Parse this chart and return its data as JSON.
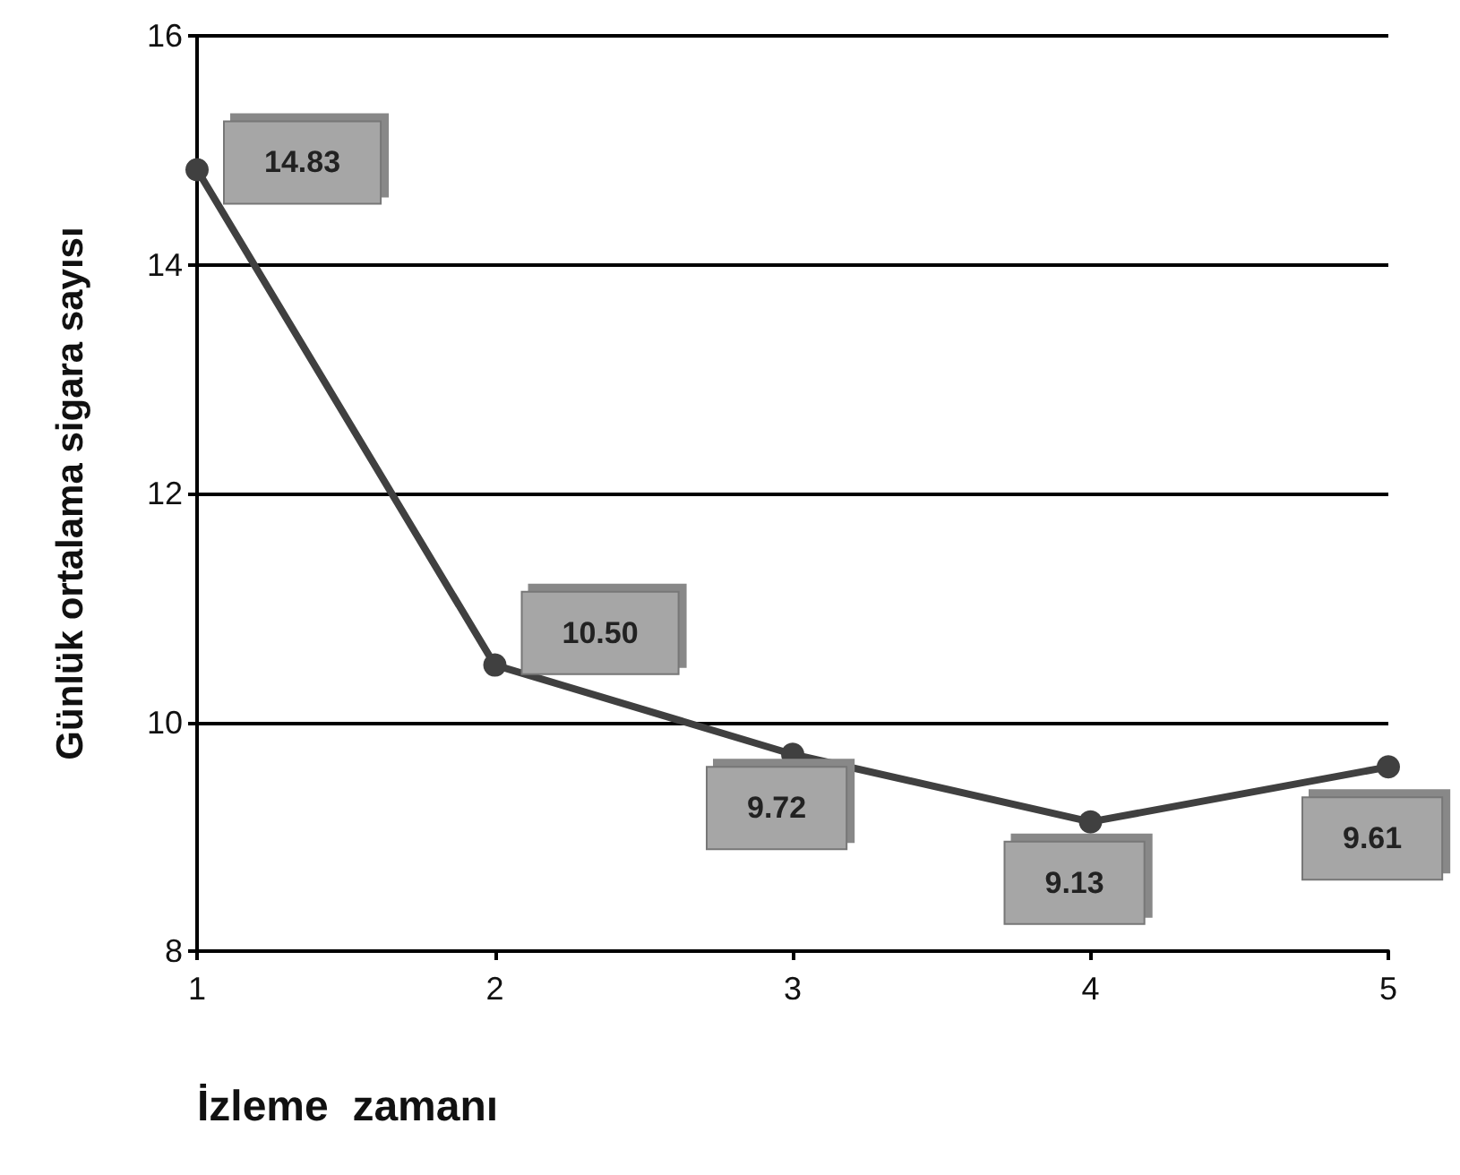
{
  "chart_data": {
    "type": "line",
    "xlabel": "İzleme  zamanı",
    "ylabel": "Günlük ortalama sigara sayısı",
    "x": [
      1,
      2,
      3,
      4,
      5
    ],
    "series": [
      {
        "color": "#404040",
        "values": [
          14.83,
          10.5,
          9.72,
          9.13,
          9.61
        ]
      }
    ],
    "xlim": [
      1,
      5
    ],
    "xticks": [
      1,
      2,
      3,
      4,
      5
    ],
    "ylim": [
      8,
      16
    ],
    "yticks": [
      8,
      10,
      12,
      14,
      16
    ],
    "value_labels": [
      "14.83",
      "10.50",
      "9.72",
      "9.13",
      "9.61"
    ],
    "grid": "y",
    "marker": "circle",
    "line_style": "solid"
  }
}
